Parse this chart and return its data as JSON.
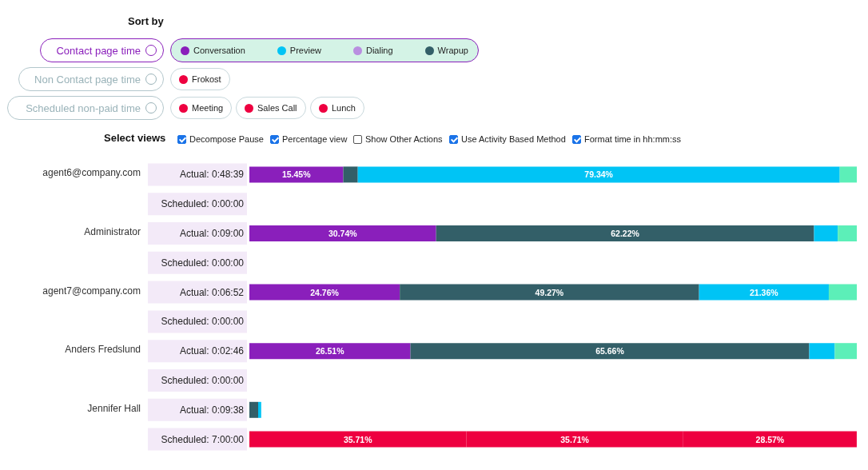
{
  "chart_data": {
    "type": "bar",
    "orientation": "horizontal",
    "stacked": true,
    "legend_title": "Sort by",
    "categories": [
      "Actual: 0:48:39",
      "Scheduled: 0:00:00",
      "Actual: 0:09:00",
      "Scheduled: 0:00:00",
      "Actual: 0:06:52",
      "Scheduled: 0:00:00",
      "Actual: 0:02:46",
      "Scheduled: 0:00:00",
      "Actual: 0:09:38",
      "Scheduled: 7:00:00"
    ],
    "xlim": [
      0,
      100
    ],
    "tick_labels": "y",
    "legend": "top left",
    "series": [
      {
        "name": "Conversation",
        "color": "#8a1fbb",
        "values": [
          15.45,
          null,
          30.74,
          null,
          24.76,
          null,
          26.51,
          null,
          null,
          null
        ],
        "value_labels": [
          "15.45%",
          null,
          "30.74%",
          null,
          "24.76%",
          null,
          "26.51%",
          null,
          null,
          null
        ]
      },
      {
        "name": "Wrapup",
        "color": "#335f68",
        "values": [
          2.4,
          null,
          62.22,
          null,
          49.27,
          null,
          65.66,
          null,
          1.45,
          null
        ],
        "value_labels": [
          null,
          null,
          "62.22%",
          null,
          "49.27%",
          null,
          "65.66%",
          null,
          null,
          null
        ]
      },
      {
        "name": "Preview",
        "color": "#00c4f5",
        "values": [
          79.34,
          null,
          3.9,
          null,
          21.36,
          null,
          4.2,
          null,
          0.5,
          null
        ],
        "value_labels": [
          "79.34%",
          null,
          null,
          null,
          "21.36%",
          null,
          null,
          null,
          null,
          null
        ]
      },
      {
        "name": "Dialing",
        "color": "#b98ee0",
        "values": [
          null,
          null,
          null,
          null,
          null,
          null,
          null,
          null,
          null,
          null
        ]
      },
      {
        "color": "#5cefb8",
        "values": [
          2.81,
          null,
          3.14,
          null,
          4.61,
          null,
          3.63,
          null,
          null,
          null
        ]
      },
      {
        "name": "Frokost",
        "color": "#ee0040",
        "values": [
          null,
          null,
          null,
          null,
          null,
          null,
          null,
          null,
          null,
          null
        ]
      },
      {
        "name": "Meeting",
        "color": "#ee0040",
        "values": [
          null,
          null,
          null,
          null,
          null,
          null,
          null,
          null,
          null,
          35.71
        ],
        "value_labels": [
          null,
          null,
          null,
          null,
          null,
          null,
          null,
          null,
          null,
          "35.71%"
        ]
      },
      {
        "name": "Sales Call",
        "color": "#ee0040",
        "values": [
          null,
          null,
          null,
          null,
          null,
          null,
          null,
          null,
          null,
          35.71
        ],
        "value_labels": [
          null,
          null,
          null,
          null,
          null,
          null,
          null,
          null,
          null,
          "35.71%"
        ]
      },
      {
        "name": "Lunch",
        "color": "#ee0040",
        "values": [
          null,
          null,
          null,
          null,
          null,
          null,
          null,
          null,
          null,
          28.57
        ],
        "value_labels": [
          null,
          null,
          null,
          null,
          null,
          null,
          null,
          null,
          null,
          "28.57%"
        ]
      }
    ],
    "annotations": [
      "Contact page time",
      "Non Contact page time",
      "Scheduled non-paid time",
      "Select views",
      "Decompose Pause",
      "Percentage view",
      "Show Other Actions",
      "Use Activity Based Method",
      "Format time in hh:mm:ss",
      "agent6@company.com",
      "Administrator",
      "agent7@company.com",
      "Anders Fredslund",
      "Jennifer Hall"
    ]
  }
}
